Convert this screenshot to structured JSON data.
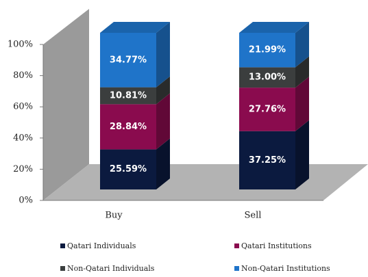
{
  "chart_data": {
    "type": "bar3d_stacked",
    "categories": [
      "Buy",
      "Sell"
    ],
    "series": [
      {
        "name": "Qatari Individuals",
        "color": "#0b1a3f",
        "values": [
          25.59,
          37.25
        ],
        "value_labels": [
          "25.59%",
          "37.25%"
        ]
      },
      {
        "name": "Qatari Institutions",
        "color": "#8a0b4e",
        "values": [
          28.84,
          27.76
        ],
        "value_labels": [
          "28.84%",
          "27.76%"
        ]
      },
      {
        "name": "Non-Qatari Individuals",
        "color": "#3b3e3e",
        "values": [
          10.81,
          13.0
        ],
        "value_labels": [
          "10.81%",
          "13.00%"
        ]
      },
      {
        "name": "Non-Qatari Institutions",
        "color": "#1f74c9",
        "values": [
          34.77,
          21.99
        ],
        "value_labels": [
          "34.77%",
          "21.99%"
        ]
      }
    ],
    "ylim": [
      0,
      100
    ],
    "yticks": [
      {
        "value": 0,
        "label": "0%"
      },
      {
        "value": 20,
        "label": "20%"
      },
      {
        "value": 40,
        "label": "40%"
      },
      {
        "value": 60,
        "label": "60%"
      },
      {
        "value": 80,
        "label": "80%"
      },
      {
        "value": 100,
        "label": "100%"
      }
    ],
    "legend": "bottom"
  }
}
